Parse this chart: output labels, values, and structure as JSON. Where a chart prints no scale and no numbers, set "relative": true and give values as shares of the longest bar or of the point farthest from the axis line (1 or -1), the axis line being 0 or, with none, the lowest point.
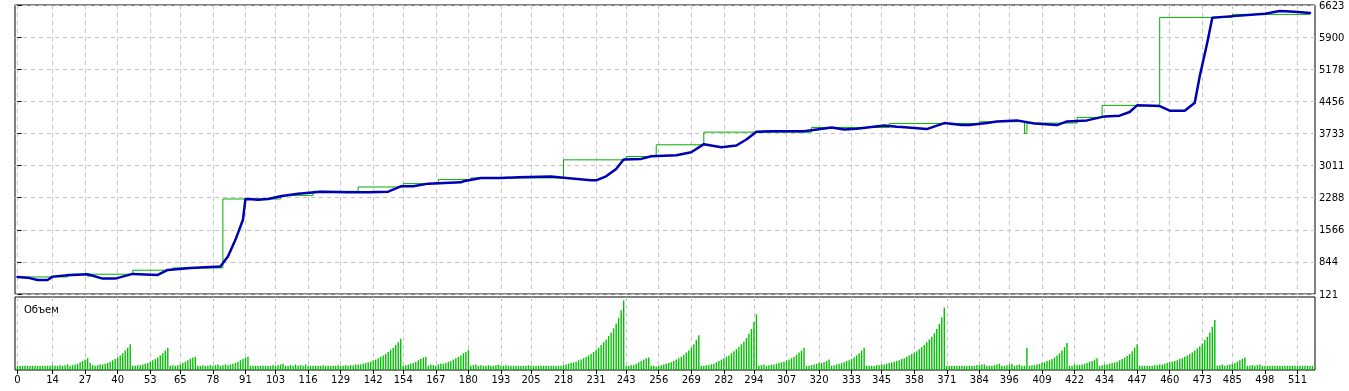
{
  "chart_data": [
    {
      "type": "line",
      "xlim": [
        -1,
        518
      ],
      "ylim": [
        121,
        6623
      ],
      "yticks": [
        121,
        844,
        1566,
        2288,
        3011,
        3733,
        4456,
        5178,
        5900,
        6623
      ],
      "xticks": [
        0,
        14,
        27,
        40,
        53,
        65,
        78,
        91,
        103,
        116,
        129,
        142,
        154,
        167,
        180,
        193,
        205,
        218,
        231,
        243,
        256,
        269,
        282,
        294,
        307,
        320,
        333,
        345,
        358,
        371,
        384,
        396,
        409,
        422,
        434,
        447,
        460,
        473,
        485,
        498,
        511
      ],
      "grid": true,
      "tick_labels": "y",
      "marker": "none",
      "series": [
        {
          "type": "step",
          "color": "#00b000",
          "x": [
            0,
            20,
            28,
            29,
            46,
            62,
            82,
            105,
            118,
            136,
            154,
            168,
            181,
            218,
            243,
            255,
            274,
            317,
            348,
            384,
            402,
            403,
            423,
            433,
            456,
            485,
            516
          ],
          "values": [
            505,
            566,
            520,
            566,
            656,
            708,
            2259,
            2340,
            2431,
            2529,
            2604,
            2695,
            2732,
            3139,
            3214,
            3478,
            3762,
            3868,
            3959,
            3997,
            3733,
            3966,
            4094,
            4365,
            6344,
            6412,
            6412
          ]
        },
        {
          "type": "line",
          "color": "#0000b4",
          "x": [
            0,
            4,
            8,
            12,
            14,
            20,
            28,
            34,
            39,
            46,
            56,
            60,
            69,
            81,
            84,
            87,
            90,
            91,
            96,
            100,
            105,
            112,
            121,
            132,
            140,
            148,
            153,
            158,
            164,
            177,
            178,
            185,
            193,
            200,
            213,
            218,
            229,
            231,
            235,
            239,
            242,
            249,
            253,
            263,
            269,
            274,
            281,
            287,
            291,
            295,
            301,
            314,
            325,
            330,
            335,
            346,
            351,
            353,
            363,
            370,
            377,
            380,
            387,
            391,
            399,
            406,
            415,
            419,
            427,
            434,
            440,
            444,
            447,
            456,
            460,
            466,
            470,
            472,
            475,
            477,
            484,
            498,
            504,
            510,
            516
          ],
          "values": [
            505,
            489,
            437,
            437,
            512,
            543,
            566,
            467,
            467,
            573,
            550,
            663,
            708,
            738,
            963,
            1340,
            1791,
            2259,
            2243,
            2259,
            2318,
            2378,
            2424,
            2408,
            2408,
            2424,
            2543,
            2543,
            2604,
            2634,
            2656,
            2732,
            2732,
            2747,
            2762,
            2739,
            2679,
            2679,
            2769,
            2935,
            3146,
            3161,
            3220,
            3243,
            3311,
            3492,
            3424,
            3462,
            3598,
            3771,
            3785,
            3785,
            3868,
            3823,
            3838,
            3913,
            3884,
            3876,
            3831,
            3966,
            3921,
            3921,
            3966,
            4004,
            4027,
            3959,
            3921,
            4004,
            4027,
            4117,
            4133,
            4215,
            4365,
            4350,
            4245,
            4245,
            4426,
            5026,
            5780,
            6336,
            6367,
            6427,
            6487,
            6472,
            6442
          ]
        }
      ]
    },
    {
      "type": "bar",
      "title": "Объем",
      "relative": true,
      "color": "#00c000",
      "xlim": [
        -1,
        518
      ],
      "xticks": [
        0,
        14,
        27,
        40,
        53,
        65,
        78,
        91,
        103,
        116,
        129,
        142,
        154,
        167,
        180,
        193,
        205,
        218,
        231,
        243,
        256,
        269,
        282,
        294,
        307,
        320,
        333,
        345,
        358,
        371,
        384,
        396,
        409,
        422,
        434,
        447,
        460,
        473,
        485,
        498,
        511
      ],
      "grid": "x",
      "tick_labels": "x",
      "x": [
        0,
        1,
        2,
        3,
        4,
        5,
        6,
        7,
        8,
        9,
        10,
        11,
        12,
        13,
        14,
        15,
        16,
        17,
        18,
        19,
        20,
        21,
        22,
        23,
        24,
        25,
        26,
        27,
        28,
        29,
        30,
        31,
        32,
        33,
        34,
        35,
        36,
        37,
        38,
        39,
        40,
        41,
        42,
        43,
        44,
        45,
        46,
        47,
        48,
        49,
        50,
        51,
        52,
        53,
        54,
        55,
        56,
        57,
        58,
        59,
        60,
        61,
        62,
        63,
        64,
        65,
        66,
        67,
        68,
        69,
        70,
        71,
        72,
        73,
        74,
        75,
        76,
        77,
        78,
        79,
        80,
        81,
        82,
        83,
        84,
        85,
        86,
        87,
        88,
        89,
        90,
        91,
        92,
        93,
        94,
        95,
        96,
        97,
        98,
        99,
        100,
        101,
        102,
        103,
        104,
        105,
        106,
        107,
        108,
        109,
        110,
        111,
        112,
        113,
        114,
        115,
        116,
        117,
        118,
        119,
        120,
        121,
        122,
        123,
        124,
        125,
        126,
        127,
        128,
        129,
        130,
        131,
        132,
        133,
        134,
        135,
        136,
        137,
        138,
        139,
        140,
        141,
        142,
        143,
        144,
        145,
        146,
        147,
        148,
        149,
        150,
        151,
        152,
        153,
        154,
        155,
        156,
        157,
        158,
        159,
        160,
        161,
        162,
        163,
        164,
        165,
        166,
        167,
        168,
        169,
        170,
        171,
        172,
        173,
        174,
        175,
        176,
        177,
        178,
        179,
        180,
        181,
        182,
        183,
        184,
        185,
        186,
        187,
        188,
        189,
        190,
        191,
        192,
        193,
        194,
        195,
        196,
        197,
        198,
        199,
        200,
        201,
        202,
        203,
        204,
        205,
        206,
        207,
        208,
        209,
        210,
        211,
        212,
        213,
        214,
        215,
        216,
        217,
        218,
        219,
        220,
        221,
        222,
        223,
        224,
        225,
        226,
        227,
        228,
        229,
        230,
        231,
        232,
        233,
        234,
        235,
        236,
        237,
        238,
        239,
        240,
        241,
        242,
        243,
        244,
        245,
        246,
        247,
        248,
        249,
        250,
        251,
        252,
        253,
        254,
        255,
        256,
        257,
        258,
        259,
        260,
        261,
        262,
        263,
        264,
        265,
        266,
        267,
        268,
        269,
        270,
        271,
        272,
        273,
        274,
        275,
        276,
        277,
        278,
        279,
        280,
        281,
        282,
        283,
        284,
        285,
        286,
        287,
        288,
        289,
        290,
        291,
        292,
        293,
        294,
        295,
        296,
        297,
        298,
        299,
        300,
        301,
        302,
        303,
        304,
        305,
        306,
        307,
        308,
        309,
        310,
        311,
        312,
        313,
        314,
        315,
        316,
        317,
        318,
        319,
        320,
        321,
        322,
        323,
        324,
        325,
        326,
        327,
        328,
        329,
        330,
        331,
        332,
        333,
        334,
        335,
        336,
        337,
        338,
        339,
        340,
        341,
        342,
        343,
        344,
        345,
        346,
        347,
        348,
        349,
        350,
        351,
        352,
        353,
        354,
        355,
        356,
        357,
        358,
        359,
        360,
        361,
        362,
        363,
        364,
        365,
        366,
        367,
        368,
        369,
        370,
        371,
        372,
        373,
        374,
        375,
        376,
        377,
        378,
        379,
        380,
        381,
        382,
        383,
        384,
        385,
        386,
        387,
        388,
        389,
        390,
        391,
        392,
        393,
        394,
        395,
        396,
        397,
        398,
        399,
        400,
        401,
        402,
        403,
        404,
        405,
        406,
        407,
        408,
        409,
        410,
        411,
        412,
        413,
        414,
        415,
        416,
        417,
        418,
        419,
        420,
        421,
        422,
        423,
        424,
        425,
        426,
        427,
        428,
        429,
        430,
        431,
        432,
        433,
        434,
        435,
        436,
        437,
        438,
        439,
        440,
        441,
        442,
        443,
        444,
        445,
        446,
        447,
        448,
        449,
        450,
        451,
        452,
        453,
        454,
        455,
        456,
        457,
        458,
        459,
        460,
        461,
        462,
        463,
        464,
        465,
        466,
        467,
        468,
        469,
        470,
        471,
        472,
        473,
        474,
        475,
        476,
        477,
        478,
        479,
        480,
        481,
        482,
        483,
        484,
        485,
        486,
        487,
        488,
        489,
        490,
        491,
        492,
        493,
        494,
        495,
        496,
        497,
        498,
        499,
        500,
        501,
        502,
        503,
        504,
        505,
        506,
        507,
        508,
        509,
        510,
        511,
        512,
        513,
        514,
        515,
        516,
        517
      ],
      "values": [
        0.06,
        0.06,
        0.06,
        0.06,
        0.06,
        0.06,
        0.06,
        0.06,
        0.06,
        0.06,
        0.06,
        0.06,
        0.06,
        0.06,
        0.07,
        0.06,
        0.06,
        0.07,
        0.06,
        0.07,
        0.08,
        0.06,
        0.07,
        0.08,
        0.09,
        0.11,
        0.13,
        0.15,
        0.17,
        0.1,
        0.07,
        0.06,
        0.07,
        0.08,
        0.08,
        0.09,
        0.1,
        0.12,
        0.14,
        0.16,
        0.18,
        0.21,
        0.24,
        0.28,
        0.32,
        0.37,
        0.06,
        0.06,
        0.07,
        0.07,
        0.08,
        0.09,
        0.1,
        0.12,
        0.14,
        0.16,
        0.18,
        0.21,
        0.24,
        0.28,
        0.32,
        0.06,
        0.07,
        0.06,
        0.07,
        0.08,
        0.1,
        0.12,
        0.14,
        0.16,
        0.18,
        0.19,
        0.06,
        0.06,
        0.07,
        0.06,
        0.06,
        0.07,
        0.06,
        0.07,
        0.08,
        0.06,
        0.07,
        0.08,
        0.07,
        0.08,
        0.09,
        0.1,
        0.12,
        0.14,
        0.16,
        0.18,
        0.19,
        0.06,
        0.06,
        0.06,
        0.06,
        0.06,
        0.06,
        0.06,
        0.06,
        0.06,
        0.07,
        0.06,
        0.07,
        0.08,
        0.09,
        0.06,
        0.06,
        0.07,
        0.06,
        0.08,
        0.06,
        0.07,
        0.06,
        0.08,
        0.06,
        0.06,
        0.06,
        0.06,
        0.06,
        0.06,
        0.07,
        0.06,
        0.06,
        0.06,
        0.06,
        0.06,
        0.07,
        0.06,
        0.06,
        0.07,
        0.06,
        0.07,
        0.07,
        0.08,
        0.08,
        0.08,
        0.09,
        0.1,
        0.11,
        0.12,
        0.14,
        0.15,
        0.17,
        0.19,
        0.21,
        0.23,
        0.26,
        0.29,
        0.32,
        0.36,
        0.4,
        0.45,
        0.06,
        0.07,
        0.08,
        0.09,
        0.1,
        0.12,
        0.14,
        0.16,
        0.18,
        0.19,
        0.06,
        0.08,
        0.07,
        0.06,
        0.08,
        0.09,
        0.09,
        0.1,
        0.12,
        0.13,
        0.15,
        0.17,
        0.19,
        0.21,
        0.24,
        0.26,
        0.29,
        0.06,
        0.07,
        0.08,
        0.06,
        0.07,
        0.06,
        0.06,
        0.07,
        0.06,
        0.06,
        0.07,
        0.08,
        0.06,
        0.06,
        0.07,
        0.06,
        0.06,
        0.06,
        0.06,
        0.06,
        0.06,
        0.06,
        0.06,
        0.07,
        0.06,
        0.06,
        0.06,
        0.06,
        0.06,
        0.06,
        0.06,
        0.06,
        0.06,
        0.06,
        0.06,
        0.06,
        0.06,
        0.07,
        0.08,
        0.09,
        0.1,
        0.11,
        0.12,
        0.14,
        0.15,
        0.17,
        0.19,
        0.21,
        0.23,
        0.26,
        0.29,
        0.32,
        0.36,
        0.4,
        0.44,
        0.49,
        0.54,
        0.6,
        0.67,
        0.75,
        0.86,
        1.0,
        0.06,
        0.06,
        0.07,
        0.07,
        0.09,
        0.11,
        0.13,
        0.15,
        0.17,
        0.18,
        0.06,
        0.06,
        0.05,
        0.06,
        0.07,
        0.08,
        0.09,
        0.1,
        0.11,
        0.13,
        0.15,
        0.17,
        0.19,
        0.22,
        0.25,
        0.28,
        0.32,
        0.37,
        0.43,
        0.5,
        0.06,
        0.06,
        0.07,
        0.07,
        0.08,
        0.09,
        0.11,
        0.13,
        0.15,
        0.17,
        0.19,
        0.21,
        0.24,
        0.27,
        0.3,
        0.33,
        0.37,
        0.41,
        0.46,
        0.52,
        0.59,
        0.69,
        0.8,
        0.06,
        0.07,
        0.08,
        0.06,
        0.07,
        0.08,
        0.08,
        0.09,
        0.1,
        0.11,
        0.12,
        0.14,
        0.15,
        0.17,
        0.19,
        0.22,
        0.25,
        0.28,
        0.32,
        0.06,
        0.06,
        0.07,
        0.08,
        0.09,
        0.1,
        0.1,
        0.11,
        0.13,
        0.15,
        0.06,
        0.07,
        0.08,
        0.09,
        0.1,
        0.11,
        0.13,
        0.14,
        0.16,
        0.18,
        0.21,
        0.24,
        0.28,
        0.32,
        0.06,
        0.06,
        0.06,
        0.06,
        0.07,
        0.07,
        0.08,
        0.08,
        0.09,
        0.1,
        0.11,
        0.12,
        0.13,
        0.14,
        0.16,
        0.17,
        0.19,
        0.21,
        0.23,
        0.25,
        0.27,
        0.3,
        0.33,
        0.36,
        0.4,
        0.44,
        0.48,
        0.53,
        0.59,
        0.66,
        0.76,
        0.9,
        0.06,
        0.06,
        0.06,
        0.06,
        0.06,
        0.06,
        0.06,
        0.06,
        0.06,
        0.06,
        0.06,
        0.06,
        0.07,
        0.07,
        0.08,
        0.08,
        0.06,
        0.06,
        0.06,
        0.07,
        0.08,
        0.09,
        0.06,
        0.06,
        0.07,
        0.08,
        0.09,
        0.06,
        0.07,
        0.08,
        0.06,
        0.06,
        0.32,
        0.06,
        0.07,
        0.07,
        0.08,
        0.09,
        0.1,
        0.11,
        0.13,
        0.14,
        0.16,
        0.18,
        0.21,
        0.24,
        0.28,
        0.33,
        0.39,
        0.06,
        0.06,
        0.08,
        0.07,
        0.07,
        0.08,
        0.09,
        0.1,
        0.12,
        0.13,
        0.15,
        0.17,
        0.06,
        0.07,
        0.08,
        0.08,
        0.09,
        0.1,
        0.11,
        0.12,
        0.14,
        0.16,
        0.18,
        0.2,
        0.23,
        0.27,
        0.32,
        0.37,
        0.06,
        0.06,
        0.06,
        0.06,
        0.06,
        0.06,
        0.07,
        0.07,
        0.08,
        0.08,
        0.09,
        0.1,
        0.11,
        0.12,
        0.13,
        0.14,
        0.16,
        0.17,
        0.19,
        0.21,
        0.23,
        0.25,
        0.28,
        0.31,
        0.34,
        0.38,
        0.43,
        0.48,
        0.54,
        0.62,
        0.72,
        0.06,
        0.07,
        0.08,
        0.06,
        0.07,
        0.08,
        0.09,
        0.1,
        0.12,
        0.14,
        0.16,
        0.18,
        0.06,
        0.06,
        0.07,
        0.06,
        0.07,
        0.08,
        0.06,
        0.06,
        0.06,
        0.06,
        0.06,
        0.06,
        0.06,
        0.06,
        0.06,
        0.06,
        0.06,
        0.06,
        0.06,
        0.06,
        0.06,
        0.06,
        0.06,
        0.06,
        0.06,
        0.06,
        0.06
      ]
    }
  ]
}
